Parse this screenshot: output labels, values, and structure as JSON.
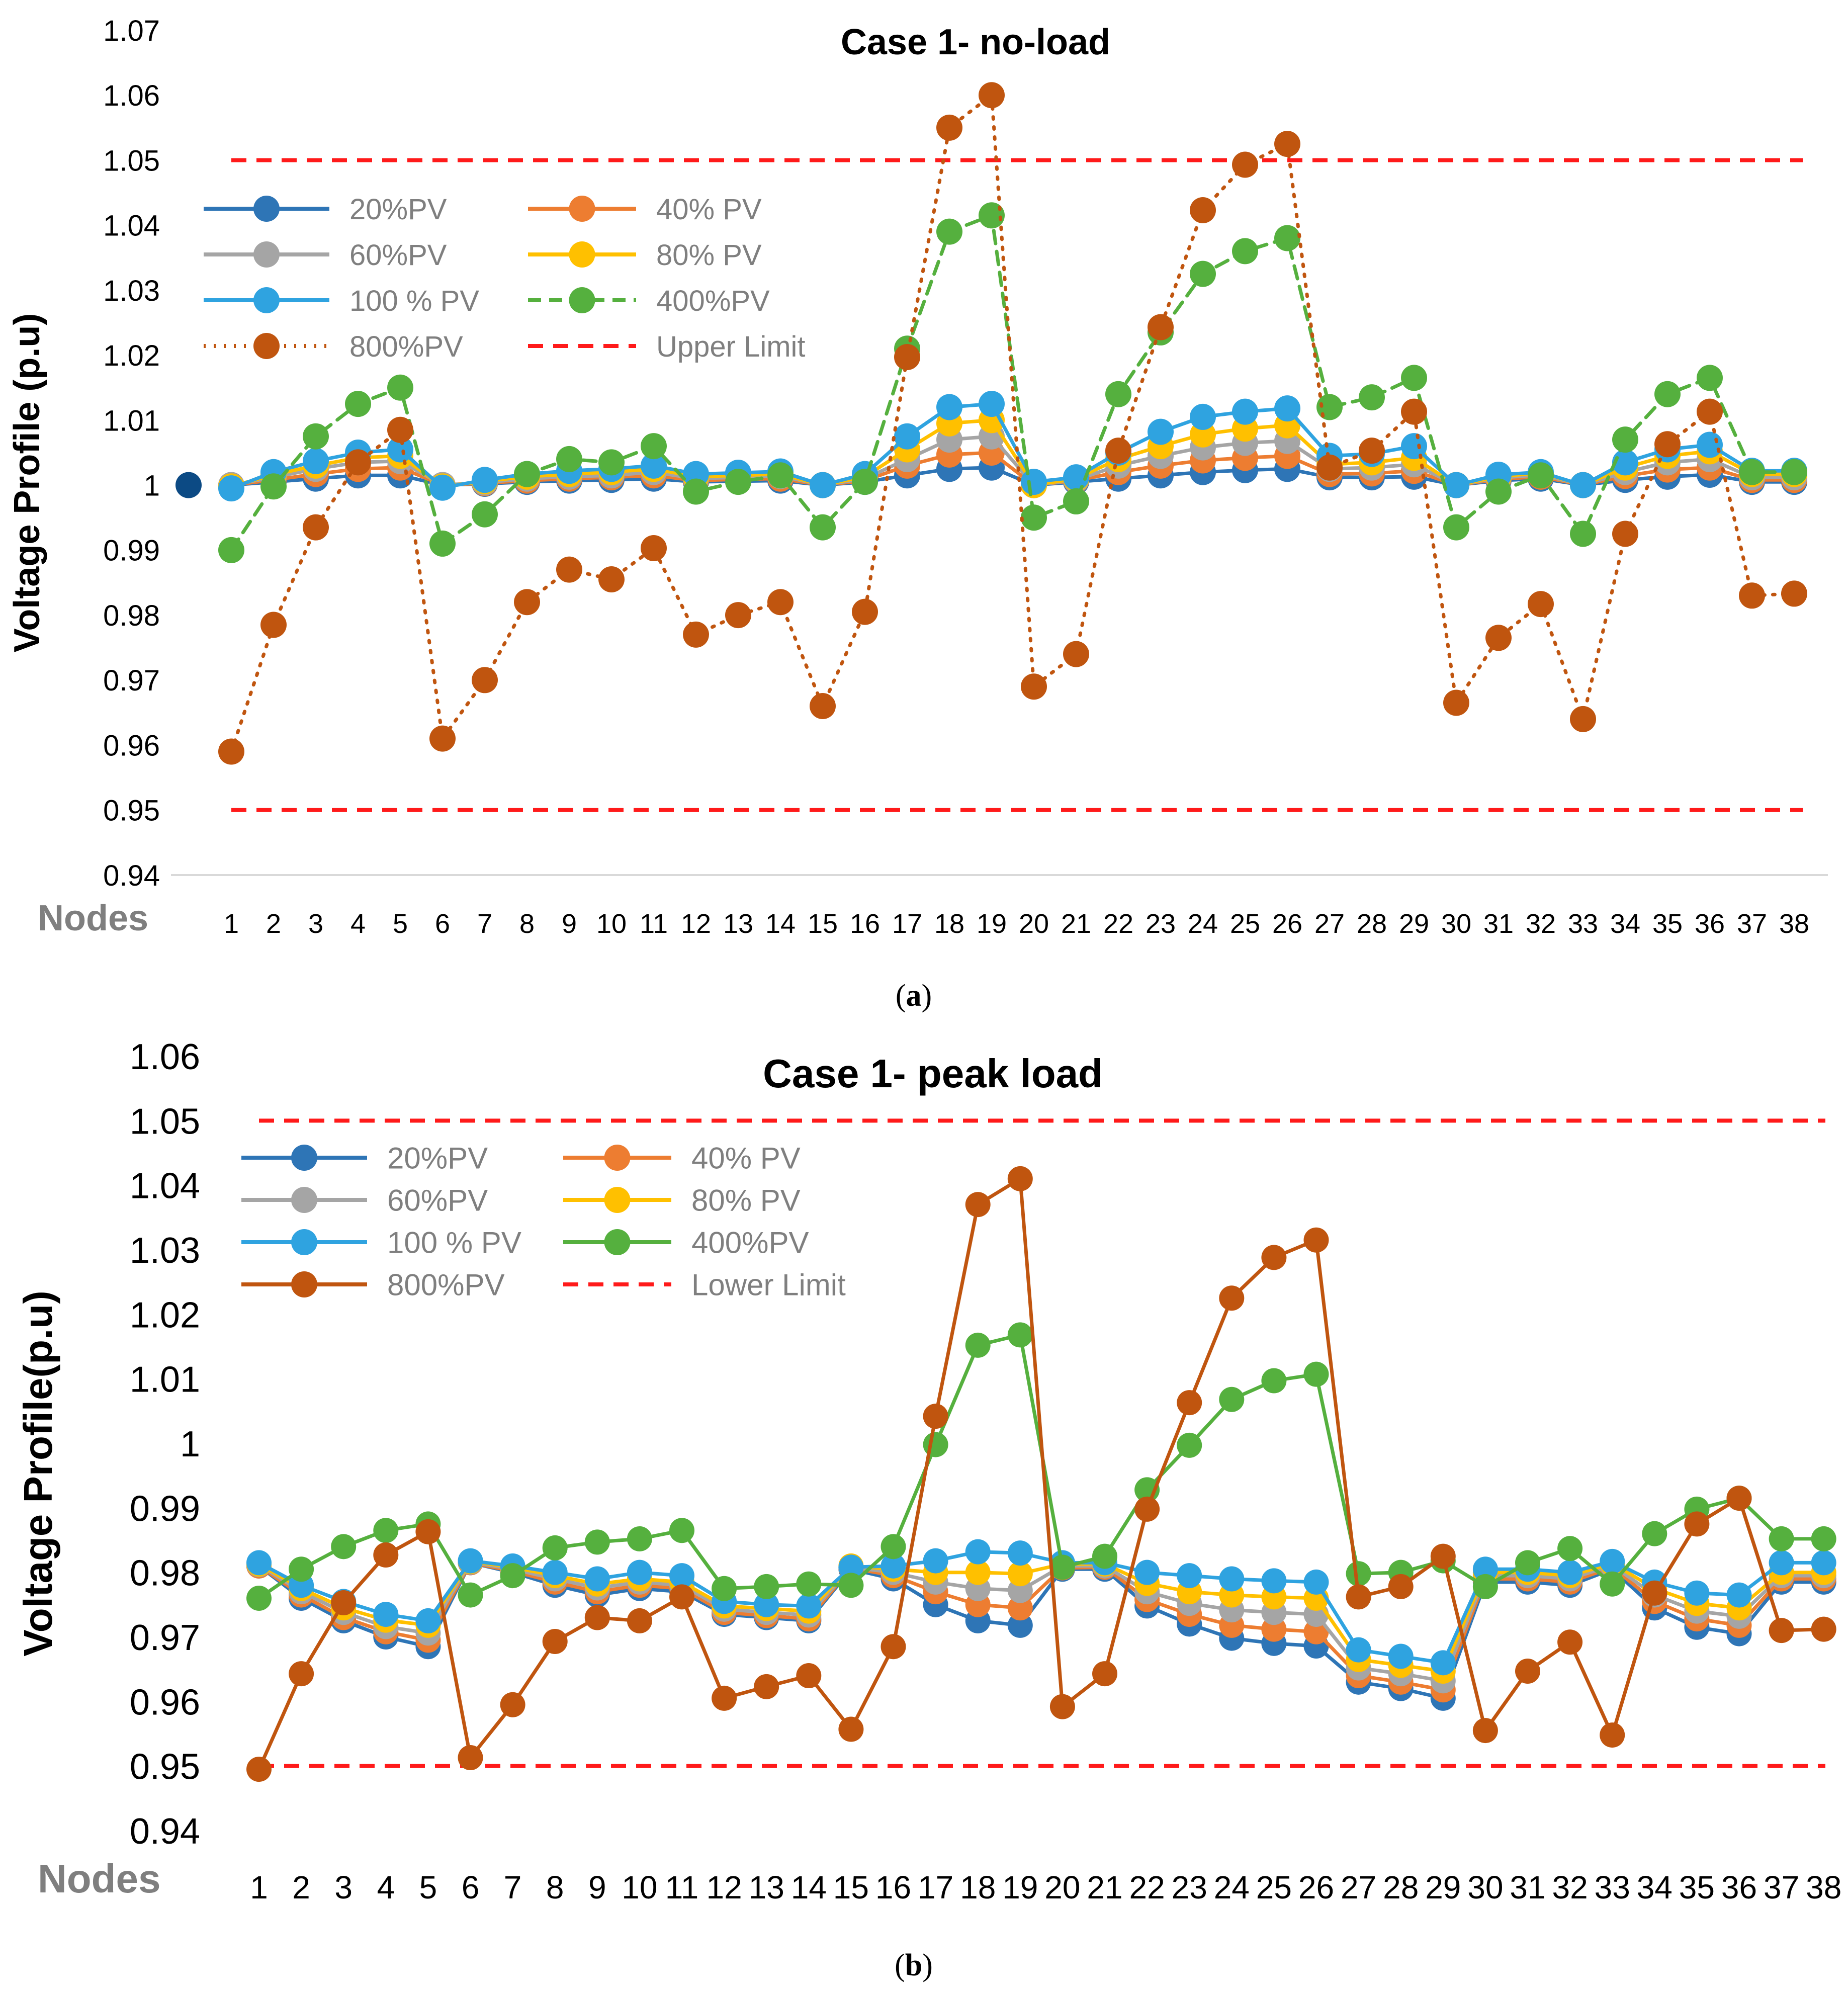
{
  "figure": {
    "captions": [
      "(a)",
      "(b)"
    ],
    "caption_bold_letters": [
      "a",
      "b"
    ]
  },
  "colors": {
    "pv20": "#2E75B6",
    "pv20_marker": "#2F6EB6",
    "pv40": "#ED7D31",
    "pv60": "#A5A5A5",
    "pv80": "#FFC000",
    "pv100": "#2FA3E0",
    "pv400": "#55B03E",
    "pv800": "#C0550F",
    "limit": "#FF1A1A",
    "axis_text": "#000000",
    "legend_text": "#7F7F7F",
    "nodes_text": "#7F7F7F",
    "axis_line": "#D9D9D9",
    "node0_marker": "#0C4A84"
  },
  "chart_data": [
    {
      "type": "line",
      "title": "Case 1- no-load",
      "xlabel": "Nodes",
      "ylabel": "Voltage Profile (p.u)",
      "ylim": [
        0.94,
        1.07
      ],
      "yticks": [
        "0.94",
        "0.95",
        "0.96",
        "0.97",
        "0.98",
        "0.99",
        "1",
        "1.01",
        "1.02",
        "1.03",
        "1.04",
        "1.05",
        "1.06",
        "1.07"
      ],
      "categories": [
        "1",
        "2",
        "3",
        "4",
        "5",
        "6",
        "7",
        "8",
        "9",
        "10",
        "11",
        "12",
        "13",
        "14",
        "15",
        "16",
        "17",
        "18",
        "19",
        "20",
        "21",
        "22",
        "23",
        "24",
        "25",
        "26",
        "27",
        "28",
        "29",
        "30",
        "31",
        "32",
        "33",
        "34",
        "35",
        "36",
        "37",
        "38"
      ],
      "extra_point": {
        "node": 0,
        "value": 1.0
      },
      "series": [
        {
          "name": "20%PV",
          "color_key": "pv20",
          "dash": "solid",
          "values": [
            1.0,
            1.0005,
            1.001,
            1.0015,
            1.0015,
            1.0,
            1.0002,
            1.0005,
            1.0007,
            1.0008,
            1.001,
            1.0005,
            1.0006,
            1.0007,
            1.0,
            1.0005,
            1.0015,
            1.0025,
            1.0027,
            1.0,
            1.0005,
            1.001,
            1.0015,
            1.002,
            1.0023,
            1.0025,
            1.0012,
            1.0012,
            1.0013,
            1.0,
            1.0007,
            1.001,
            1.0,
            1.0008,
            1.0013,
            1.0016,
            1.0005,
            1.0005
          ]
        },
        {
          "name": "40% PV",
          "color_key": "pv40",
          "dash": "solid",
          "values": [
            1.0,
            1.0008,
            1.0017,
            1.0025,
            1.0027,
            1.0,
            1.0003,
            1.0007,
            1.001,
            1.0012,
            1.0015,
            1.0007,
            1.0009,
            1.001,
            1.0,
            1.0007,
            1.003,
            1.0047,
            1.005,
            1.0,
            1.0007,
            1.002,
            1.003,
            1.0038,
            1.0042,
            1.0045,
            1.0017,
            1.0018,
            1.0022,
            1.0,
            1.0009,
            1.0013,
            1.0,
            1.0014,
            1.0024,
            1.0027,
            1.0008,
            1.0008
          ]
        },
        {
          "name": "60%PV",
          "color_key": "pv60",
          "dash": "solid",
          "values": [
            1.0,
            1.0012,
            1.0025,
            1.0035,
            1.0037,
            1.0,
            1.0004,
            1.001,
            1.0013,
            1.0015,
            1.002,
            1.001,
            1.0012,
            1.0014,
            1.0,
            1.001,
            1.004,
            1.007,
            1.0075,
            1.0,
            1.0008,
            1.003,
            1.0045,
            1.0058,
            1.0065,
            1.0068,
            1.0025,
            1.0027,
            1.0032,
            1.0,
            1.0011,
            1.0016,
            1.0,
            1.002,
            1.0035,
            1.004,
            1.0012,
            1.0012
          ]
        },
        {
          "name": "80% PV",
          "color_key": "pv80",
          "dash": "solid",
          "values": [
            0.9998,
            1.0016,
            1.003,
            1.0042,
            1.0045,
            0.9998,
            1.0006,
            1.0013,
            1.0017,
            1.002,
            1.0025,
            1.0013,
            1.0015,
            1.0017,
            1.0,
            1.0013,
            1.0055,
            1.0095,
            1.01,
            1.0,
            1.001,
            1.004,
            1.006,
            1.0078,
            1.0087,
            1.0092,
            1.0032,
            1.0035,
            1.0042,
            1.0,
            1.0013,
            1.0019,
            1.0,
            1.0027,
            1.0045,
            1.0052,
            1.0017,
            1.0017
          ]
        },
        {
          "name": "100 % PV",
          "color_key": "pv100",
          "dash": "solid",
          "values": [
            0.9995,
            1.002,
            1.0037,
            1.005,
            1.0055,
            0.9996,
            1.0008,
            1.0017,
            1.0022,
            1.0025,
            1.003,
            1.0017,
            1.0019,
            1.0021,
            1.0,
            1.0017,
            1.0075,
            1.012,
            1.0125,
            1.0005,
            1.0012,
            1.005,
            1.0082,
            1.0105,
            1.0113,
            1.0118,
            1.0045,
            1.0048,
            1.006,
            1.0,
            1.0016,
            1.002,
            1.0,
            1.0035,
            1.0055,
            1.0062,
            1.0022,
            1.0022
          ]
        },
        {
          "name": "400%PV",
          "color_key": "pv400",
          "dash": "dashed",
          "values": [
            0.99,
            0.9998,
            1.0075,
            1.0125,
            1.015,
            0.991,
            0.9955,
            1.0017,
            1.004,
            1.0035,
            1.006,
            0.999,
            1.0005,
            1.0015,
            0.9935,
            1.0005,
            1.021,
            1.039,
            1.0415,
            0.995,
            0.9975,
            1.014,
            1.0235,
            1.0325,
            1.036,
            1.038,
            1.012,
            1.0135,
            1.0165,
            0.9935,
            0.999,
            1.0015,
            0.9925,
            1.007,
            1.014,
            1.0165,
            1.002,
            1.002
          ]
        },
        {
          "name": "800%PV",
          "color_key": "pv800",
          "dash": "dotted",
          "values": [
            0.959,
            0.9785,
            0.9935,
            1.0035,
            1.0085,
            0.961,
            0.97,
            0.982,
            0.987,
            0.9855,
            0.9903,
            0.977,
            0.98,
            0.982,
            0.966,
            0.9805,
            1.0197,
            1.055,
            1.06,
            0.969,
            0.974,
            1.0053,
            1.0243,
            1.0423,
            1.0493,
            1.0525,
            1.0027,
            1.0053,
            1.0113,
            0.9665,
            0.9765,
            0.9817,
            0.964,
            0.9925,
            1.0063,
            1.0113,
            0.983,
            0.9833
          ]
        }
      ],
      "limits": [
        {
          "name": "Upper Limit",
          "value": 1.05,
          "color_key": "limit"
        },
        {
          "name": "",
          "value": 0.95,
          "color_key": "limit"
        }
      ],
      "legend_placement": "top-left"
    },
    {
      "type": "line",
      "title": "Case 1- peak load",
      "xlabel": "Nodes",
      "ylabel": "Voltage Profile(p.u)",
      "ylim": [
        0.94,
        1.06
      ],
      "yticks": [
        "0.94",
        "0.95",
        "0.96",
        "0.97",
        "0.98",
        "0.99",
        "1",
        "1.01",
        "1.02",
        "1.03",
        "1.04",
        "1.05",
        "1.06"
      ],
      "categories": [
        "1",
        "2",
        "3",
        "4",
        "5",
        "6",
        "7",
        "8",
        "9",
        "10",
        "11",
        "12",
        "13",
        "14",
        "15",
        "16",
        "17",
        "18",
        "19",
        "20",
        "21",
        "22",
        "23",
        "24",
        "25",
        "26",
        "27",
        "28",
        "29",
        "30",
        "31",
        "32",
        "33",
        "34",
        "35",
        "36",
        "37",
        "38"
      ],
      "series": [
        {
          "name": "20%PV",
          "color_key": "pv20",
          "dash": "solid",
          "values": [
            0.981,
            0.976,
            0.9725,
            0.97,
            0.9685,
            0.9815,
            0.98,
            0.978,
            0.9765,
            0.9775,
            0.977,
            0.9735,
            0.973,
            0.9725,
            0.9805,
            0.979,
            0.975,
            0.9725,
            0.9718,
            0.9805,
            0.9805,
            0.9748,
            0.972,
            0.9698,
            0.969,
            0.9686,
            0.963,
            0.962,
            0.9605,
            0.9785,
            0.9785,
            0.978,
            0.9805,
            0.9745,
            0.9715,
            0.9705,
            0.9785,
            0.9785
          ]
        },
        {
          "name": "40% PV",
          "color_key": "pv40",
          "dash": "solid",
          "values": [
            0.981,
            0.9765,
            0.973,
            0.9708,
            0.9695,
            0.9815,
            0.9802,
            0.9785,
            0.977,
            0.978,
            0.9775,
            0.9738,
            0.9733,
            0.9728,
            0.9807,
            0.9795,
            0.977,
            0.975,
            0.9745,
            0.9807,
            0.9808,
            0.9758,
            0.9735,
            0.9718,
            0.9712,
            0.9708,
            0.964,
            0.963,
            0.9618,
            0.979,
            0.979,
            0.9785,
            0.9808,
            0.9755,
            0.9728,
            0.9718,
            0.979,
            0.979
          ]
        },
        {
          "name": "60%PV",
          "color_key": "pv60",
          "dash": "solid",
          "values": [
            0.9812,
            0.977,
            0.9738,
            0.9716,
            0.9706,
            0.9816,
            0.9805,
            0.979,
            0.9776,
            0.9785,
            0.978,
            0.9743,
            0.9738,
            0.9734,
            0.9808,
            0.98,
            0.9785,
            0.9775,
            0.9772,
            0.981,
            0.981,
            0.977,
            0.9752,
            0.9742,
            0.9738,
            0.9735,
            0.9652,
            0.9643,
            0.9632,
            0.9795,
            0.9795,
            0.979,
            0.9811,
            0.9765,
            0.974,
            0.9732,
            0.9795,
            0.9795
          ]
        },
        {
          "name": "80% PV",
          "color_key": "pv80",
          "dash": "solid",
          "values": [
            0.9813,
            0.9775,
            0.9745,
            0.9726,
            0.9718,
            0.9817,
            0.9808,
            0.9795,
            0.9782,
            0.979,
            0.9785,
            0.9748,
            0.9744,
            0.974,
            0.981,
            0.9805,
            0.98,
            0.98,
            0.9798,
            0.9813,
            0.9813,
            0.9783,
            0.977,
            0.9765,
            0.9762,
            0.976,
            0.9665,
            0.9656,
            0.9647,
            0.98,
            0.98,
            0.9795,
            0.9814,
            0.9775,
            0.9752,
            0.9745,
            0.98,
            0.98
          ]
        },
        {
          "name": "100 % PV",
          "color_key": "pv100",
          "dash": "solid",
          "values": [
            0.9815,
            0.978,
            0.9755,
            0.9735,
            0.9725,
            0.9818,
            0.981,
            0.98,
            0.979,
            0.98,
            0.9795,
            0.9755,
            0.975,
            0.9748,
            0.9808,
            0.981,
            0.9818,
            0.9832,
            0.983,
            0.9815,
            0.9815,
            0.98,
            0.9795,
            0.979,
            0.9787,
            0.9785,
            0.968,
            0.967,
            0.966,
            0.9805,
            0.9805,
            0.98,
            0.9817,
            0.9785,
            0.9768,
            0.9765,
            0.9815,
            0.9815
          ]
        },
        {
          "name": "400%PV",
          "color_key": "pv400",
          "dash": "solid",
          "values": [
            0.976,
            0.9805,
            0.984,
            0.9865,
            0.9875,
            0.9765,
            0.9795,
            0.9838,
            0.9847,
            0.9852,
            0.9865,
            0.9775,
            0.9778,
            0.9782,
            0.978,
            0.984,
            0.9998,
            1.0152,
            1.0168,
            0.9808,
            0.9825,
            0.9928,
            0.9997,
            1.0068,
            1.0097,
            1.0107,
            0.9798,
            0.98,
            0.9818,
            0.9778,
            0.9815,
            0.9837,
            0.9782,
            0.986,
            0.9898,
            0.9915,
            0.9852,
            0.9852
          ]
        },
        {
          "name": "800%PV",
          "color_key": "pv800",
          "dash": "solid",
          "values": [
            0.9495,
            0.9643,
            0.9753,
            0.9827,
            0.9863,
            0.9513,
            0.9595,
            0.9693,
            0.973,
            0.9725,
            0.9762,
            0.9605,
            0.9623,
            0.964,
            0.9557,
            0.9685,
            1.0042,
            1.037,
            1.041,
            0.9592,
            0.9643,
            0.9898,
            1.0063,
            1.0225,
            1.0288,
            1.0315,
            0.9762,
            0.9778,
            0.9825,
            0.9555,
            0.9647,
            0.9692,
            0.9548,
            0.9768,
            0.9875,
            0.9915,
            0.971,
            0.9712
          ]
        }
      ],
      "limits": [
        {
          "name": "Lower Limit",
          "value": 1.05,
          "color_key": "limit"
        },
        {
          "name": "",
          "value": 0.95,
          "color_key": "limit"
        }
      ],
      "legend_placement": "top-left"
    }
  ]
}
